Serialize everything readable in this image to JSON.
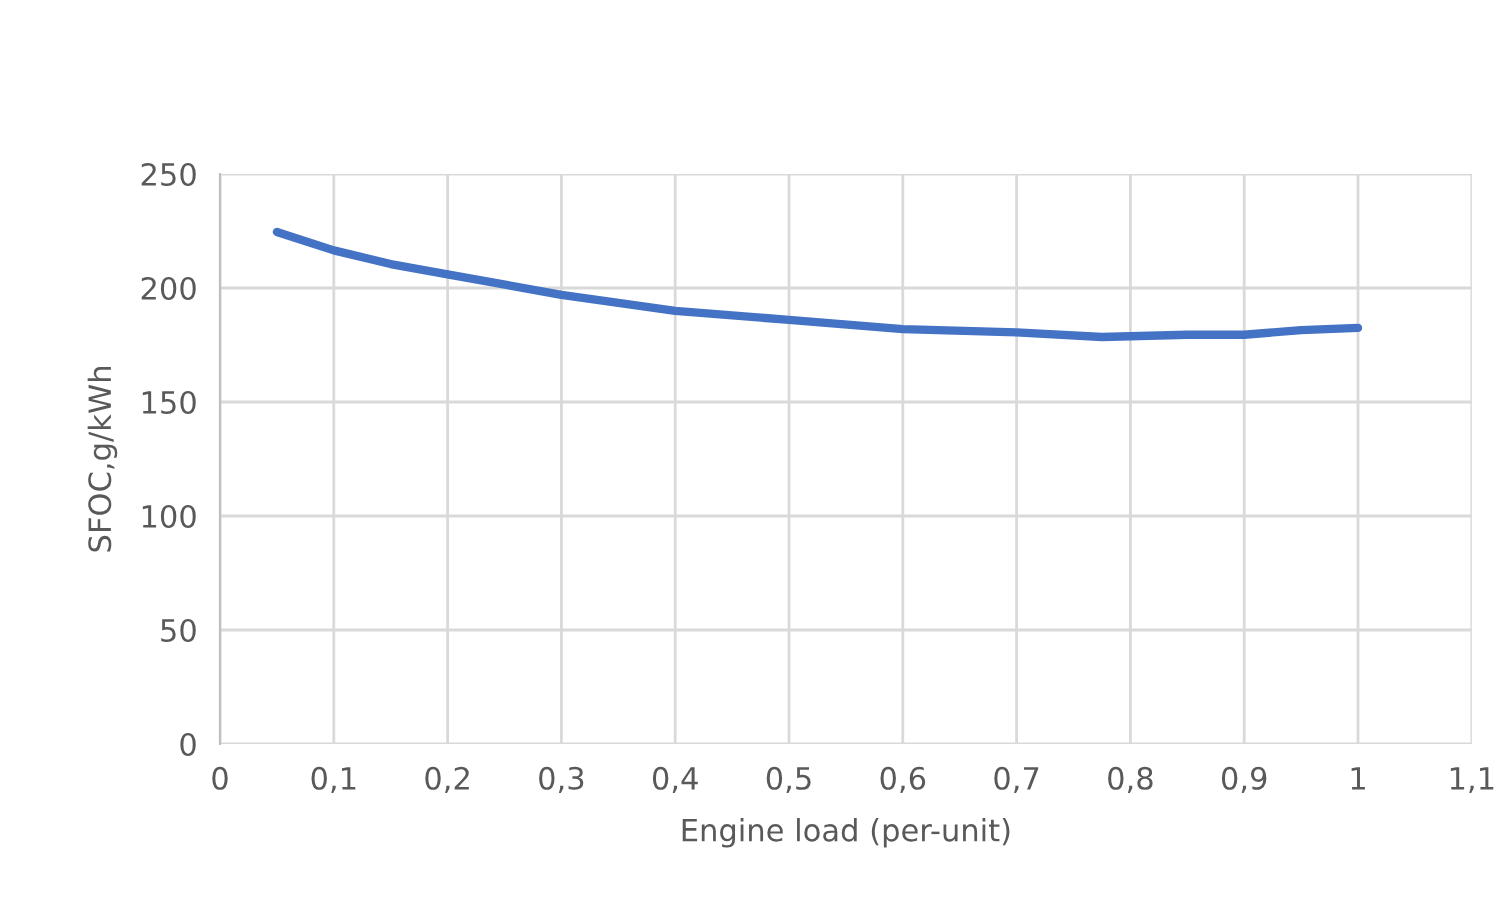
{
  "chart_data": {
    "type": "line",
    "xlabel": "Engine load (per-unit)",
    "ylabel": "SFOC,g/kWh",
    "x": [
      0.05,
      0.1,
      0.15,
      0.2,
      0.3,
      0.4,
      0.5,
      0.6,
      0.7,
      0.775,
      0.85,
      0.9,
      0.95,
      1.0
    ],
    "series": [
      {
        "color": "#4472c4",
        "values": [
          224.6,
          216.5,
          210.5,
          206,
          197,
          190,
          186,
          182,
          180.5,
          178.5,
          179.5,
          179.5,
          181.5,
          182.5
        ]
      }
    ],
    "xlim": [
      0,
      1.1
    ],
    "ylim": [
      0,
      250
    ],
    "xticks": [
      0,
      {
        "value": 0.1,
        "label": "0,1"
      },
      {
        "value": 0.2,
        "label": "0,2"
      },
      {
        "value": 0.3,
        "label": "0,3"
      },
      {
        "value": 0.4,
        "label": "0,4"
      },
      {
        "value": 0.5,
        "label": "0,5"
      },
      {
        "value": 0.6,
        "label": "0,6"
      },
      {
        "value": 0.7,
        "label": "0,7"
      },
      {
        "value": 0.8,
        "label": "0,8"
      },
      {
        "value": 0.9,
        "label": "0,9"
      },
      1,
      {
        "value": 1.1,
        "label": "1,1"
      }
    ],
    "yticks": [
      0,
      50,
      100,
      150,
      200,
      250
    ],
    "grid": true,
    "marker": "none",
    "line_style": "solid"
  }
}
